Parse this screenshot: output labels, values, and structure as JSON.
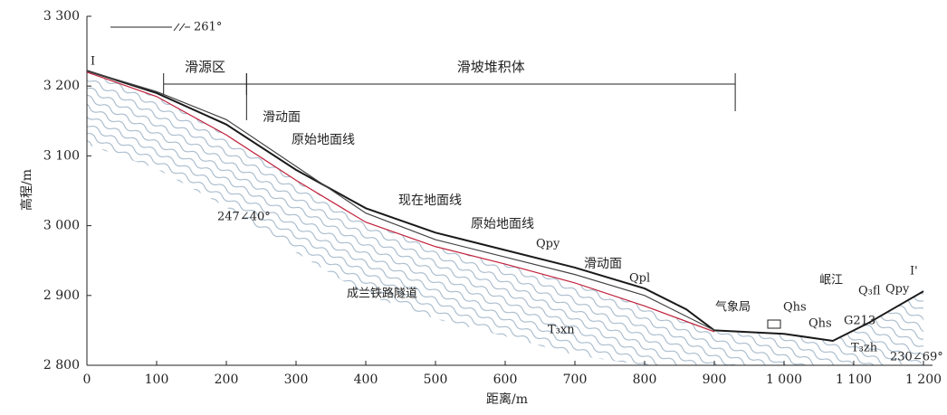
{
  "chart_data": {
    "type": "line",
    "x_label": "距离/m",
    "y_label": "高程/m",
    "xlim": [
      0,
      1200
    ],
    "ylim": [
      2800,
      3300
    ],
    "xticks": [
      0,
      100,
      200,
      300,
      400,
      500,
      600,
      700,
      800,
      900,
      {
        "value": 1000,
        "label": "1 000"
      },
      {
        "value": 1100,
        "label": "1 100"
      },
      {
        "value": 1200,
        "label": "1 200"
      }
    ],
    "yticks": [
      {
        "value": 2800,
        "label": "2 800"
      },
      {
        "value": 2900,
        "label": "2 900"
      },
      {
        "value": 3000,
        "label": "3 000"
      },
      {
        "value": 3100,
        "label": "3 100"
      },
      {
        "value": 3200,
        "label": "3 200"
      },
      {
        "value": 3300,
        "label": "3 300"
      }
    ],
    "series": [
      {
        "name": "现在地面线",
        "color": "#1a1a1a",
        "x": [
          0,
          100,
          200,
          300,
          400,
          500,
          600,
          700,
          800,
          860,
          900,
          1000,
          1070,
          1120,
          1200
        ],
        "values": [
          3222,
          3190,
          3145,
          3080,
          3025,
          2990,
          2965,
          2940,
          2910,
          2880,
          2850,
          2845,
          2835,
          2860,
          2906
        ]
      },
      {
        "name": "原始地面线",
        "color": "#444444",
        "x": [
          0,
          100,
          200,
          300,
          400,
          500,
          600,
          700,
          800,
          900
        ],
        "values": [
          3222,
          3192,
          3152,
          3085,
          3018,
          2980,
          2955,
          2930,
          2900,
          2850
        ]
      },
      {
        "name": "滑动面",
        "color": "#c0203a",
        "x": [
          0,
          100,
          200,
          300,
          400,
          500,
          600,
          700,
          800,
          900
        ],
        "values": [
          3220,
          3185,
          3130,
          3065,
          3005,
          2970,
          2945,
          2918,
          2885,
          2848
        ]
      }
    ],
    "zones": [
      {
        "label": "滑源区",
        "range": [
          110,
          229
        ]
      },
      {
        "label": "滑坡堆积体",
        "range": [
          229,
          930
        ]
      }
    ],
    "annotations": [
      "261°",
      "Ⅰ",
      "Ⅰ'",
      "Qpy",
      "Qpl",
      "247∠40°",
      "成兰铁路隧道",
      "T₃xn",
      "气象局",
      "Qhs",
      "Qhs",
      "G213",
      "岷江",
      "Q₃fl",
      "Qpy",
      "T₃zh",
      "230∠69°"
    ]
  }
}
